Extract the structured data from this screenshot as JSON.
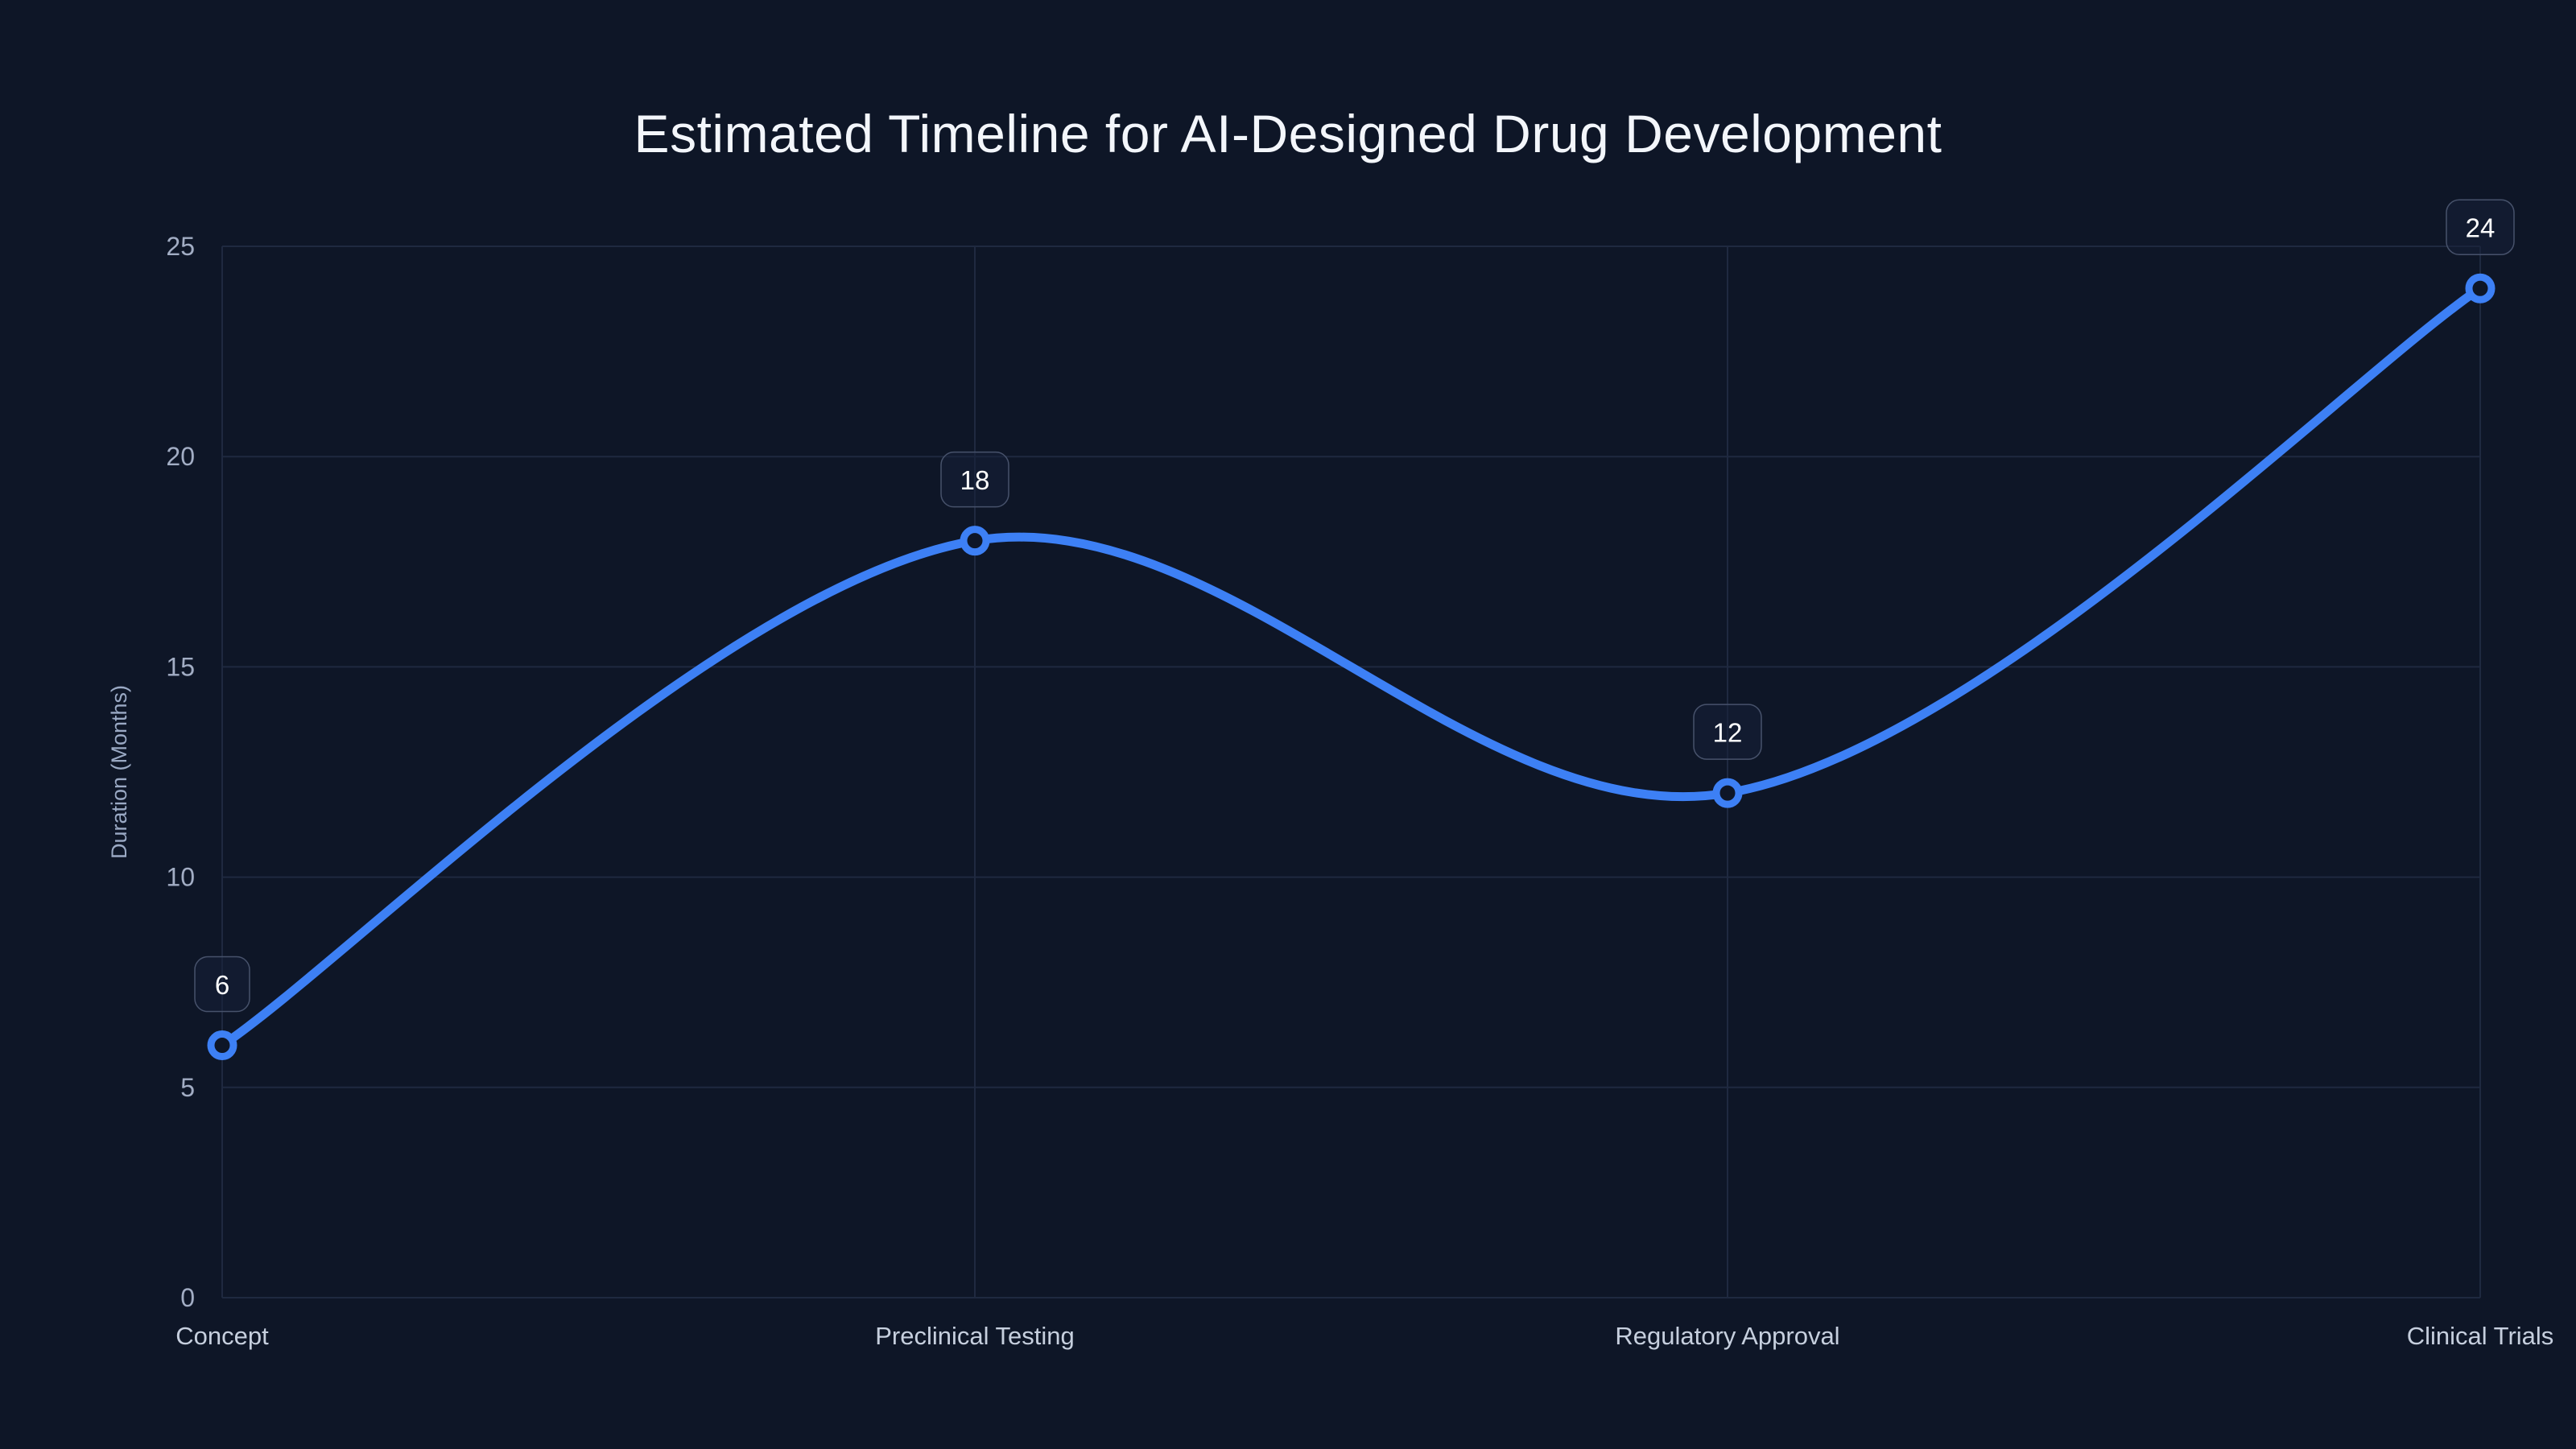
{
  "chart_data": {
    "type": "line",
    "title": "Estimated Timeline for AI-Designed Drug Development",
    "categories": [
      "Concept",
      "Preclinical Testing",
      "Regulatory Approval",
      "Clinical Trials"
    ],
    "values": [
      6,
      18,
      12,
      24
    ],
    "xlabel": "",
    "ylabel": "Duration (Months)",
    "ylim": [
      0,
      25
    ],
    "yticks": [
      0,
      5,
      10,
      15,
      20,
      25
    ],
    "grid": true,
    "legend": false,
    "smooth": true,
    "marker": "open-circle",
    "data_labels_shown": true
  },
  "colors": {
    "background": "#0e1627",
    "line": "#3d80f5",
    "grid": "#1f2940",
    "title_text": "#f3f6fb",
    "y_tick_text": "#a2adc4",
    "x_tick_text": "#c6cfde",
    "axis_title_text": "#9aa9c4",
    "data_label_text": "#ffffff",
    "data_label_box_fill": "rgba(22,32,56,0.55)",
    "data_label_box_border": "#47526b",
    "marker_fill": "#0e1627"
  }
}
